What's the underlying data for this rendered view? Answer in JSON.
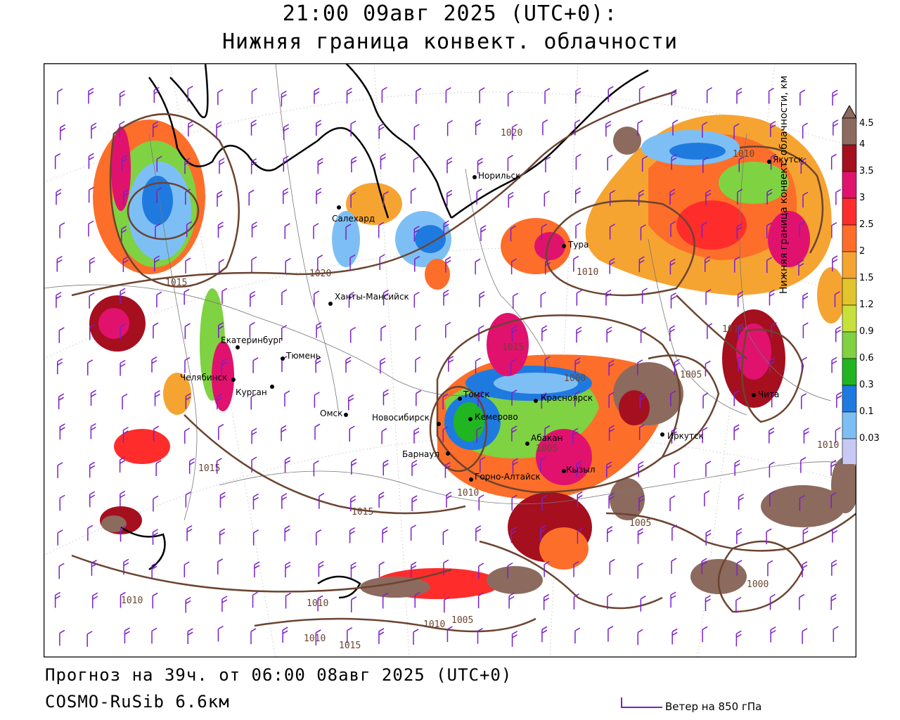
{
  "header": {
    "title_line1": "21:00 09авг 2025 (UTC+0):",
    "title_line2": "Нижняя граница конвект. облачности"
  },
  "footer": {
    "forecast_line": "Прогноз на 39ч. от 06:00 08авг 2025 (UTC+0)",
    "model_line": "COSMO-RuSib 6.6км"
  },
  "wind_legend": {
    "label": "Ветер на 850 гПа",
    "color": "#7a20c8"
  },
  "colorbar": {
    "title": "Нижняя граница конвект. облачности, км",
    "ticks": [
      "4.5",
      "4",
      "3.5",
      "3",
      "2.5",
      "2",
      "1.5",
      "1.2",
      "0.9",
      "0.6",
      "0.3",
      "0.1",
      "0.03"
    ],
    "colors": [
      "#8c6a5e",
      "#a50f1e",
      "#e0126e",
      "#ff2c2c",
      "#fd6e2a",
      "#f6a431",
      "#e2c52c",
      "#c8e13a",
      "#7fd241",
      "#21b521",
      "#1f7ae0",
      "#7dbff5",
      "#c8c8f5"
    ]
  },
  "cities": [
    {
      "name": "Салехард"
    },
    {
      "name": "Норильск"
    },
    {
      "name": "Якутск"
    },
    {
      "name": "Тура"
    },
    {
      "name": "Ханты-Мансийск"
    },
    {
      "name": "Екатеринбург"
    },
    {
      "name": "Тюмень"
    },
    {
      "name": "Челябинск"
    },
    {
      "name": "Курган"
    },
    {
      "name": "Омск"
    },
    {
      "name": "Новосибирск"
    },
    {
      "name": "Томск"
    },
    {
      "name": "Кемерово"
    },
    {
      "name": "Красноярск"
    },
    {
      "name": "Барнаул"
    },
    {
      "name": "Абакан"
    },
    {
      "name": "Горно-Алтайск"
    },
    {
      "name": "Кызыл"
    },
    {
      "name": "Иркутск"
    },
    {
      "name": "Чита"
    }
  ],
  "isobars": [
    {
      "label": "1020"
    },
    {
      "label": "1020"
    },
    {
      "label": "1015"
    },
    {
      "label": "1015"
    },
    {
      "label": "1015"
    },
    {
      "label": "1015"
    },
    {
      "label": "1010"
    },
    {
      "label": "1010"
    },
    {
      "label": "1010"
    },
    {
      "label": "1010"
    },
    {
      "label": "1010"
    },
    {
      "label": "1010"
    },
    {
      "label": "1010"
    },
    {
      "label": "1010"
    },
    {
      "label": "1005"
    },
    {
      "label": "1005"
    },
    {
      "label": "1005"
    },
    {
      "label": "1005"
    },
    {
      "label": "1000"
    },
    {
      "label": "1000"
    },
    {
      "label": "1015"
    },
    {
      "label": "1010"
    }
  ],
  "palette": {
    "isobar": "#6b4430",
    "wind": "#7a20c8",
    "coast": "#000000",
    "border": "#777777"
  }
}
